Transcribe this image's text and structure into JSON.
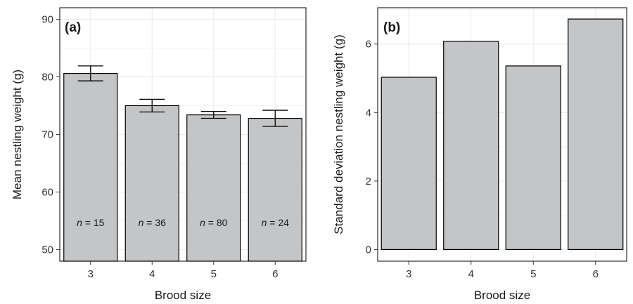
{
  "chart_data": [
    {
      "type": "bar",
      "panel_label": "(a)",
      "categories": [
        "3",
        "4",
        "5",
        "6"
      ],
      "values": [
        80.6,
        75.0,
        73.4,
        72.8
      ],
      "error_low": [
        79.3,
        73.9,
        72.8,
        71.4
      ],
      "error_high": [
        81.9,
        76.1,
        74.0,
        74.2
      ],
      "bar_labels": [
        {
          "prefix": "n",
          "text": " = 15"
        },
        {
          "prefix": "n",
          "text": " = 36"
        },
        {
          "prefix": "n",
          "text": " = 80"
        },
        {
          "prefix": "n",
          "text": " = 24"
        }
      ],
      "xlabel": "Brood size",
      "ylabel": "Mean nestling weight (g)",
      "ylim": [
        48,
        92
      ],
      "yticks": [
        "50",
        "60",
        "70",
        "80",
        "90"
      ],
      "grid": true,
      "colors": {
        "bar": "#c4c5c7",
        "bar_stroke": "#000000",
        "grid": "#ececec"
      }
    },
    {
      "type": "bar",
      "panel_label": "(b)",
      "categories": [
        "3",
        "4",
        "5",
        "6"
      ],
      "values": [
        5.03,
        6.08,
        5.36,
        6.73
      ],
      "xlabel": "Brood size",
      "ylabel": "Standard deviation nestling weight (g)",
      "ylim": [
        -0.34,
        7.06
      ],
      "yticks": [
        "0",
        "2",
        "4",
        "6"
      ],
      "grid": true,
      "colors": {
        "bar": "#c4c5c7",
        "bar_stroke": "#000000",
        "grid": "#ececec"
      }
    }
  ]
}
